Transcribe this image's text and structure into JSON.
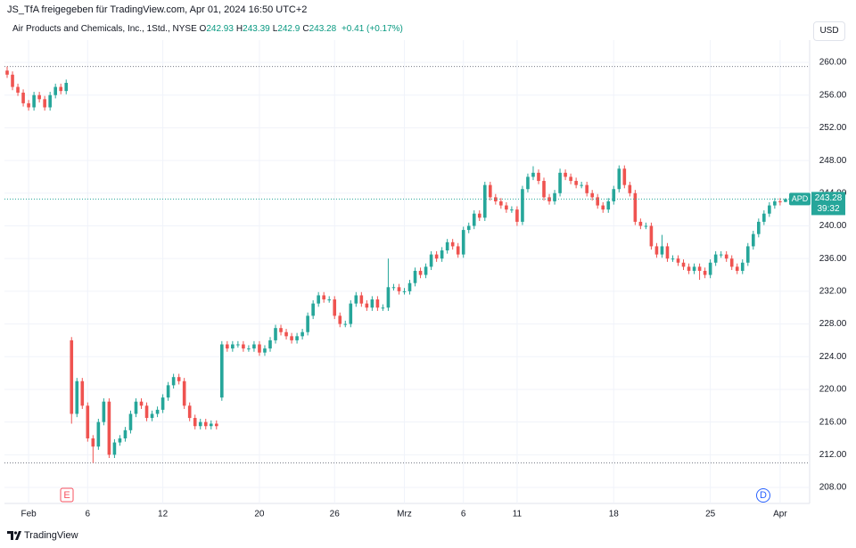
{
  "header": {
    "shared_by": "JS_TfA freigegeben für TradingView.com, Apr 01, 2024 16:50 UTC+2",
    "symbol": "Air Products and Chemicals, Inc., 1Std., NYSE",
    "ohlc_labels": [
      "O",
      "H",
      "L",
      "C"
    ],
    "change": "+0.41 (+0.17%)",
    "currency": "USD"
  },
  "chart_data": {
    "type": "candlestick",
    "ticker": "APD",
    "countdown": "39:32",
    "events": [
      "E",
      "D"
    ],
    "categories": [
      null,
      null,
      null,
      null,
      "Feb",
      null,
      null,
      null,
      null,
      null,
      null,
      null,
      null,
      null,
      null,
      "6",
      null,
      null,
      null,
      null,
      null,
      null,
      null,
      null,
      null,
      null,
      null,
      null,
      null,
      "12",
      null,
      null,
      null,
      null,
      null,
      null,
      null,
      null,
      null,
      null,
      null,
      null,
      null,
      null,
      null,
      null,
      null,
      "20",
      null,
      null,
      null,
      null,
      null,
      null,
      null,
      null,
      null,
      null,
      null,
      null,
      null,
      "26",
      null,
      null,
      null,
      null,
      null,
      null,
      null,
      null,
      null,
      null,
      null,
      null,
      "Mrz",
      null,
      null,
      null,
      null,
      null,
      null,
      null,
      null,
      null,
      null,
      "6",
      null,
      null,
      null,
      null,
      null,
      null,
      null,
      null,
      null,
      "11",
      null,
      null,
      null,
      null,
      null,
      null,
      null,
      null,
      null,
      null,
      null,
      null,
      null,
      null,
      null,
      null,
      null,
      "18",
      null,
      null,
      null,
      null,
      null,
      null,
      null,
      null,
      null,
      null,
      null,
      null,
      null,
      null,
      null,
      null,
      null,
      "25",
      null,
      null,
      null,
      null,
      null,
      null,
      null,
      null,
      null,
      null,
      null,
      null,
      "Apr",
      null,
      null,
      null,
      null,
      null
    ],
    "open": [
      259,
      258.5,
      257,
      256.3,
      255,
      254.5,
      256,
      255.5,
      254.5,
      256,
      257,
      256.5,
      226,
      217,
      221,
      218,
      214,
      213,
      216,
      218.5,
      212,
      213.5,
      214,
      215,
      217,
      218.5,
      218,
      216.5,
      217,
      217.5,
      219,
      220.5,
      221.5,
      221,
      218,
      216.5,
      215.5,
      216,
      215.5,
      215.8,
      219,
      225.5,
      225,
      225.5,
      225.5,
      225,
      225,
      225.5,
      224.5,
      225,
      226,
      227.5,
      227,
      226.5,
      226,
      226.5,
      227,
      229,
      230.5,
      231.5,
      231,
      231,
      229,
      228,
      228,
      230.5,
      231.5,
      230.5,
      230,
      231,
      230,
      230,
      232.5,
      232.5,
      232,
      232,
      233,
      234.5,
      234,
      235,
      236.5,
      236,
      237,
      238,
      237.5,
      236.5,
      239.5,
      240,
      241.5,
      241,
      245,
      243.5,
      243,
      242.5,
      242,
      242,
      240.5,
      244.5,
      246,
      246.5,
      245.5,
      243.5,
      243,
      244,
      246.5,
      246,
      245.5,
      245,
      245,
      244,
      243.5,
      242.5,
      242,
      243,
      244.5,
      247,
      245,
      244,
      240.5,
      240,
      240,
      237.5,
      236.5,
      237.5,
      236,
      236,
      235.5,
      235,
      234.5,
      235,
      234.5,
      234,
      235.5,
      236.5,
      236.5,
      236,
      235,
      234.5,
      235.5,
      237.5,
      239,
      240.5,
      241.5,
      242.5,
      243,
      242.93,
      null,
      null,
      null,
      null
    ],
    "high": [
      259.5,
      258.9,
      257.4,
      256.7,
      255.4,
      256.4,
      256.4,
      255.9,
      256.4,
      257.4,
      257.4,
      257.9,
      226.4,
      221.4,
      221.4,
      218.4,
      214.4,
      216.4,
      218.9,
      218.9,
      213.9,
      214.4,
      215.4,
      217.4,
      218.9,
      218.9,
      218.4,
      217.4,
      217.9,
      219.4,
      220.9,
      221.9,
      221.9,
      221.4,
      218.4,
      216.9,
      216.4,
      216.4,
      216.2,
      216.2,
      225.9,
      225.9,
      225.9,
      225.9,
      225.9,
      225.4,
      225.9,
      225.9,
      225.4,
      226.4,
      227.9,
      227.9,
      227.4,
      226.9,
      226.9,
      227.4,
      229.4,
      230.9,
      231.9,
      231.9,
      231.4,
      231.4,
      229.4,
      228.4,
      230.9,
      231.9,
      231.9,
      230.9,
      231.4,
      231.4,
      230.4,
      236,
      232.9,
      232.9,
      232.4,
      233.4,
      234.9,
      234.9,
      235.4,
      236.9,
      236.9,
      237.4,
      238.4,
      238.4,
      237.9,
      239.9,
      240.4,
      241.9,
      241.9,
      245.4,
      245.4,
      243.9,
      243.4,
      242.9,
      242.4,
      242.4,
      244.9,
      246.4,
      247.3,
      246.9,
      245.9,
      243.9,
      244.4,
      247,
      246.9,
      246.4,
      245.9,
      245.4,
      245.4,
      244.4,
      243.9,
      242.9,
      243.4,
      244.9,
      247.4,
      247.4,
      245.4,
      244.4,
      240.9,
      240.4,
      240.4,
      237.9,
      238.9,
      237.9,
      236.4,
      236.4,
      235.9,
      235.4,
      235.4,
      235.4,
      234.9,
      235.9,
      236.9,
      236.9,
      236.9,
      236.4,
      235.4,
      235.9,
      237.9,
      239.4,
      240.9,
      241.9,
      242.9,
      243.4,
      243.4,
      243.39,
      null,
      null,
      null,
      null
    ],
    "low": [
      258.1,
      256.6,
      255.9,
      254.6,
      254.1,
      254.1,
      255.1,
      254.1,
      254.1,
      255.6,
      256.1,
      256.1,
      215.8,
      216.6,
      217.6,
      213.6,
      211,
      212.6,
      215.6,
      211.6,
      211.6,
      213.1,
      213.6,
      214.6,
      216.6,
      217.6,
      216.1,
      216.1,
      216.6,
      217.1,
      218.6,
      220.1,
      220.6,
      217.6,
      216.1,
      215.1,
      215.1,
      215.1,
      215.1,
      215.1,
      218.6,
      224.6,
      224.6,
      225.1,
      224.6,
      224.6,
      224.6,
      224.1,
      224.1,
      224.6,
      225.6,
      226.6,
      226.1,
      225.6,
      225.6,
      226.1,
      226.6,
      228.6,
      230.1,
      230.6,
      230.6,
      228.6,
      227.6,
      227.6,
      227.6,
      230.1,
      230.1,
      229.6,
      229.6,
      229.6,
      229.6,
      229.6,
      232.1,
      231.6,
      231.6,
      231.6,
      232.6,
      233.6,
      233.6,
      234.6,
      235.6,
      235.6,
      236.6,
      237.1,
      236.1,
      236.1,
      239.1,
      239.6,
      240.6,
      240.6,
      243.1,
      242.6,
      242.1,
      241.6,
      241.6,
      240,
      240.1,
      244.1,
      245.6,
      245.1,
      243.1,
      242.6,
      242.6,
      243.6,
      245.6,
      245.1,
      244.6,
      244.6,
      243.6,
      243.1,
      242.1,
      241.6,
      241.6,
      242.6,
      244.1,
      244.6,
      243.6,
      240.1,
      239.6,
      239.6,
      237.1,
      236.1,
      236.1,
      235.6,
      235.6,
      235.1,
      234.6,
      234.1,
      234.1,
      233.4,
      233.6,
      233.6,
      235.1,
      236.1,
      235.6,
      234.6,
      234.1,
      234.1,
      235.1,
      237.1,
      238.6,
      240.1,
      241.1,
      242.1,
      242.5,
      242.9,
      null,
      null,
      null,
      null
    ],
    "close": [
      258.5,
      257,
      256.3,
      255,
      254.5,
      256,
      255.5,
      254.5,
      256,
      257,
      256.5,
      257.5,
      217,
      221,
      218,
      214,
      213,
      216,
      218.5,
      212,
      213.5,
      214,
      215,
      217,
      218.5,
      218,
      216.5,
      217,
      217.5,
      219,
      220.5,
      221.5,
      221,
      218,
      216.5,
      215.5,
      216,
      215.5,
      215.8,
      215.5,
      225.5,
      225,
      225.5,
      225.5,
      225,
      225,
      225.5,
      224.5,
      225,
      226,
      227.5,
      227,
      226.5,
      226,
      226.5,
      227,
      229,
      230.5,
      231.5,
      231,
      231,
      229,
      228,
      228,
      230.5,
      231.5,
      230.5,
      230,
      231,
      230,
      230,
      232.5,
      232.5,
      232,
      232,
      233,
      234.5,
      234,
      235,
      236.5,
      236,
      237,
      238,
      237.5,
      236.5,
      239.5,
      240,
      241.5,
      241,
      245,
      243.5,
      243,
      242.5,
      242,
      242,
      240.5,
      244.5,
      246,
      246.5,
      245.5,
      243.5,
      243,
      244,
      246.5,
      246,
      245.5,
      245,
      245,
      244,
      243.5,
      242.5,
      242,
      243,
      244.5,
      247,
      245,
      244,
      240.5,
      240,
      240,
      237.5,
      236.5,
      237.5,
      236,
      236,
      235.5,
      235,
      234.5,
      235,
      234.5,
      234,
      235.5,
      236.5,
      236.5,
      236,
      235,
      234.5,
      235.5,
      237.5,
      239,
      240.5,
      241.5,
      242.5,
      243,
      242.93,
      243.28,
      null,
      null,
      null,
      null
    ],
    "up_color": "#26a69a",
    "down_color": "#ef5350",
    "ylim": [
      206.04,
      262.73
    ],
    "yticks": [
      {
        "value": 208,
        "label": "208.00"
      },
      {
        "value": 212,
        "label": "212.00"
      },
      {
        "value": 216,
        "label": "216.00"
      },
      {
        "value": 220,
        "label": "220.00"
      },
      {
        "value": 224,
        "label": "224.00"
      },
      {
        "value": 228,
        "label": "228.00"
      },
      {
        "value": 232,
        "label": "232.00"
      },
      {
        "value": 236,
        "label": "236.00"
      },
      {
        "value": 240,
        "label": "240.00"
      },
      {
        "value": 244,
        "label": "244.00"
      },
      {
        "value": 248,
        "label": "248.00"
      },
      {
        "value": 252,
        "label": "252.00"
      },
      {
        "value": 256,
        "label": "256.00"
      },
      {
        "value": 260,
        "label": "260.00"
      }
    ],
    "grid": true
  },
  "footer": {
    "brand": "TradingView"
  }
}
